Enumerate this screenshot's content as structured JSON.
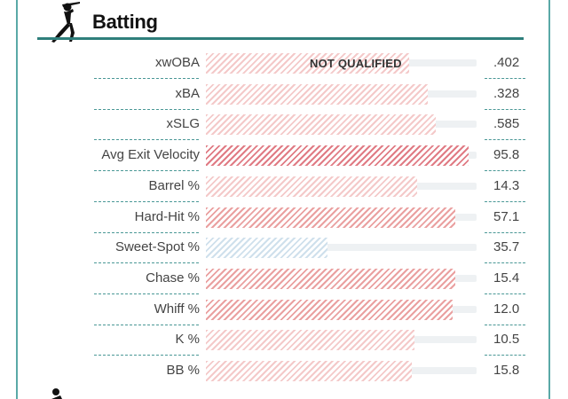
{
  "section": {
    "title": "Batting",
    "icon": "batter-icon"
  },
  "colors": {
    "frame": "#5aa9a7",
    "rule": "#2f7f7c",
    "dash": "#4a9896",
    "bar_light": "#f4c9c9",
    "bar_medium": "#eaa0a0",
    "bar_strong": "#e07b84",
    "bar_blue": "#cfe0ec",
    "track": "#eef1f3"
  },
  "rows": [
    {
      "label": "xwOBA",
      "value": ".402",
      "fill_pct": 75,
      "shade": "light",
      "note": "NOT QUALIFIED"
    },
    {
      "label": "xBA",
      "value": ".328",
      "fill_pct": 82,
      "shade": "light"
    },
    {
      "label": "xSLG",
      "value": ".585",
      "fill_pct": 85,
      "shade": "light"
    },
    {
      "label": "Avg Exit Velocity",
      "value": "95.8",
      "fill_pct": 97,
      "shade": "strong"
    },
    {
      "label": "Barrel %",
      "value": "14.3",
      "fill_pct": 78,
      "shade": "light"
    },
    {
      "label": "Hard-Hit %",
      "value": "57.1",
      "fill_pct": 92,
      "shade": "medium"
    },
    {
      "label": "Sweet-Spot %",
      "value": "35.7",
      "fill_pct": 45,
      "shade": "blue"
    },
    {
      "label": "Chase %",
      "value": "15.4",
      "fill_pct": 92,
      "shade": "medium"
    },
    {
      "label": "Whiff %",
      "value": "12.0",
      "fill_pct": 91,
      "shade": "medium"
    },
    {
      "label": "K %",
      "value": "10.5",
      "fill_pct": 77,
      "shade": "light"
    },
    {
      "label": "BB %",
      "value": "15.8",
      "fill_pct": 76,
      "shade": "light"
    }
  ]
}
